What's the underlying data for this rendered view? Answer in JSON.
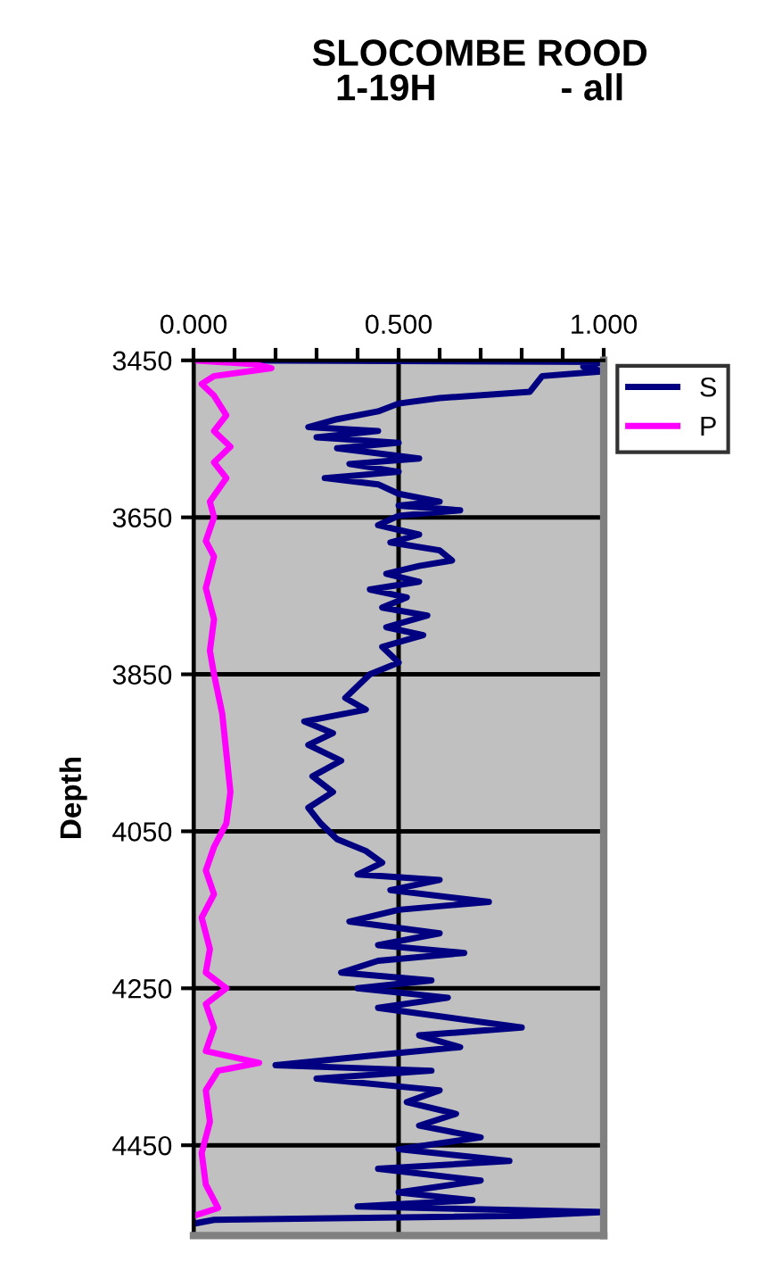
{
  "chart_data": {
    "type": "line",
    "title": "SLOCOMBE ROOD\n1-19H            - all",
    "ylabel": "Depth",
    "xlim": [
      0,
      1
    ],
    "xticks": [
      {
        "value": 0,
        "label": "0.000"
      },
      {
        "value": 0.1,
        "label": null
      },
      {
        "value": 0.2,
        "label": null
      },
      {
        "value": 0.3,
        "label": null
      },
      {
        "value": 0.4,
        "label": null
      },
      {
        "value": 0.5,
        "label": "0.500"
      },
      {
        "value": 0.6,
        "label": null
      },
      {
        "value": 0.7,
        "label": null
      },
      {
        "value": 0.8,
        "label": null
      },
      {
        "value": 0.9,
        "label": null
      },
      {
        "value": 1,
        "label": "1.000"
      }
    ],
    "ylim": [
      4565,
      3450
    ],
    "yticks": [
      3450,
      3650,
      3850,
      4050,
      4250,
      4450
    ],
    "grid": true,
    "legend": "top right",
    "marker": "none",
    "line_style": "solid",
    "series": [
      {
        "name": "S",
        "color": "#000080",
        "x": [
          0.05,
          1.0,
          0.95,
          1.0,
          0.85,
          0.82,
          0.6,
          0.5,
          0.45,
          0.35,
          0.28,
          0.45,
          0.3,
          0.5,
          0.35,
          0.55,
          0.38,
          0.5,
          0.32,
          0.45,
          0.5,
          0.6,
          0.5,
          0.65,
          0.5,
          0.45,
          0.55,
          0.48,
          0.6,
          0.63,
          0.55,
          0.47,
          0.55,
          0.43,
          0.52,
          0.46,
          0.57,
          0.47,
          0.56,
          0.46,
          0.5,
          0.43,
          0.4,
          0.37,
          0.42,
          0.27,
          0.34,
          0.28,
          0.36,
          0.29,
          0.34,
          0.28,
          0.31,
          0.35,
          0.42,
          0.46,
          0.4,
          0.6,
          0.48,
          0.72,
          0.5,
          0.38,
          0.6,
          0.45,
          0.66,
          0.45,
          0.36,
          0.58,
          0.4,
          0.62,
          0.45,
          0.8,
          0.55,
          0.65,
          0.45,
          0.2,
          0.58,
          0.3,
          0.6,
          0.52,
          0.64,
          0.55,
          0.7,
          0.5,
          0.77,
          0.45,
          0.7,
          0.5,
          0.68,
          0.4,
          1.0,
          0.8,
          0.05,
          0.0
        ],
        "values": [
          3450,
          3452,
          3458,
          3464,
          3470,
          3490,
          3498,
          3505,
          3515,
          3525,
          3535,
          3540,
          3548,
          3555,
          3562,
          3575,
          3582,
          3592,
          3600,
          3608,
          3620,
          3630,
          3635,
          3641,
          3648,
          3660,
          3672,
          3682,
          3692,
          3705,
          3712,
          3722,
          3732,
          3742,
          3752,
          3765,
          3775,
          3790,
          3800,
          3815,
          3835,
          3850,
          3865,
          3880,
          3895,
          3910,
          3925,
          3940,
          3960,
          3980,
          4000,
          4020,
          4040,
          4060,
          4075,
          4090,
          4105,
          4112,
          4125,
          4140,
          4150,
          4165,
          4180,
          4195,
          4205,
          4215,
          4230,
          4240,
          4250,
          4262,
          4275,
          4300,
          4310,
          4325,
          4335,
          4348,
          4355,
          4365,
          4380,
          4395,
          4410,
          4425,
          4440,
          4455,
          4470,
          4480,
          4495,
          4510,
          4520,
          4528,
          4535,
          4540,
          4545,
          4550
        ]
      },
      {
        "name": "P",
        "color": "#ff00ff",
        "x": [
          0.0,
          0.15,
          0.19,
          0.05,
          0.02,
          0.05,
          0.08,
          0.05,
          0.09,
          0.05,
          0.08,
          0.04,
          0.05,
          0.03,
          0.05,
          0.03,
          0.05,
          0.04,
          0.05,
          0.07,
          0.08,
          0.09,
          0.08,
          0.05,
          0.03,
          0.05,
          0.02,
          0.04,
          0.03,
          0.08,
          0.03,
          0.05,
          0.03,
          0.16,
          0.06,
          0.03,
          0.04,
          0.02,
          0.03,
          0.06,
          0.0
        ],
        "values": [
          3450,
          3455,
          3460,
          3470,
          3480,
          3495,
          3520,
          3540,
          3560,
          3580,
          3600,
          3630,
          3650,
          3680,
          3700,
          3740,
          3780,
          3820,
          3850,
          3900,
          3950,
          4000,
          4040,
          4070,
          4100,
          4130,
          4160,
          4200,
          4230,
          4250,
          4270,
          4300,
          4330,
          4345,
          4355,
          4380,
          4420,
          4460,
          4500,
          4530,
          4540
        ]
      }
    ]
  }
}
